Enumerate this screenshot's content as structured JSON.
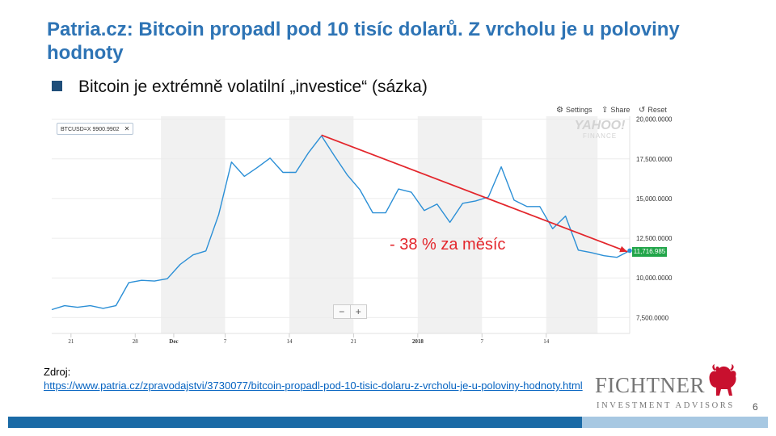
{
  "slide": {
    "title": "Patria.cz: Bitcoin propadl pod 10 tisíc dolarů. Z vrcholu je u poloviny hodnoty",
    "bullet": "Bitcoin je extrémně volatilní „investice“ (sázka)",
    "source_label": "Zdroj:",
    "source_url": "https://www.patria.cz/zpravodajstvi/3730077/bitcoin-propadl-pod-10-tisic-dolaru-z-vrcholu-je-u-poloviny-hodnoty.html",
    "page_number": "6",
    "logo_name": "FICHTNER",
    "logo_sub": "INVESTMENT ADVISORS",
    "colors": {
      "title": "#2e74b5",
      "footer_bar_dark": "#1a6aa6",
      "footer_bar_light": "#a7c8e2",
      "annotation": "#e3262c"
    }
  },
  "chart_toolbar": {
    "settings_label": "Settings",
    "share_label": "Share",
    "reset_label": "Reset",
    "ticker_tag": "BTCUSD=X 9900.9902",
    "watermark_line1": "YAHOO!",
    "watermark_line2": "FINANCE",
    "zoom_minus": "−",
    "zoom_plus": "+",
    "settings_icon": "gear-icon",
    "share_icon": "share-icon",
    "reset_icon": "reset-icon"
  },
  "chart_data": {
    "type": "line",
    "title": "",
    "xlabel": "",
    "ylabel": "",
    "ylim": [
      6500,
      21000
    ],
    "y_ticks": [
      {
        "value": 7500,
        "label": "7,500.0000"
      },
      {
        "value": 10000,
        "label": "10,000.0000"
      },
      {
        "value": 12500,
        "label": "12,500.0000"
      },
      {
        "value": 15000,
        "label": "15,000.0000"
      },
      {
        "value": 17500,
        "label": "17,500.0000"
      },
      {
        "value": 20000,
        "label": "20,000.0000"
      }
    ],
    "x_ticks": [
      {
        "index": 1.5,
        "label": "21"
      },
      {
        "index": 6.5,
        "label": "28"
      },
      {
        "index": 9.5,
        "label": "Dec"
      },
      {
        "index": 13.5,
        "label": "7"
      },
      {
        "index": 18.5,
        "label": "14"
      },
      {
        "index": 23.5,
        "label": "21"
      },
      {
        "index": 28.5,
        "label": "2018"
      },
      {
        "index": 33.5,
        "label": "7"
      },
      {
        "index": 38.5,
        "label": "14"
      }
    ],
    "shaded_week_bands": [
      [
        8.5,
        13.5
      ],
      [
        18.5,
        23.5
      ],
      [
        28.5,
        33.5
      ],
      [
        38.5,
        42.5
      ]
    ],
    "series": [
      {
        "values": [
          8000,
          8250,
          8150,
          8250,
          8080,
          8250,
          9700,
          9850,
          9800,
          9950,
          10850,
          11450,
          11700,
          14000,
          17300,
          16400,
          16950,
          17550,
          16650,
          16650,
          17900,
          18950,
          17700,
          16500,
          15550,
          14100,
          14100,
          15600,
          15400,
          14250,
          14650,
          13500,
          14700,
          14850,
          15100,
          17000,
          14900,
          14500,
          14500,
          13100,
          13900,
          11750,
          11600,
          11400,
          11300,
          11716.985
        ]
      }
    ],
    "last_price_label": "11,716.985",
    "trend_arrow": {
      "from": {
        "index": 21,
        "value": 19000
      },
      "to": {
        "index": 45,
        "value": 11650
      }
    },
    "annotation": "- 38 % za měsíc"
  }
}
